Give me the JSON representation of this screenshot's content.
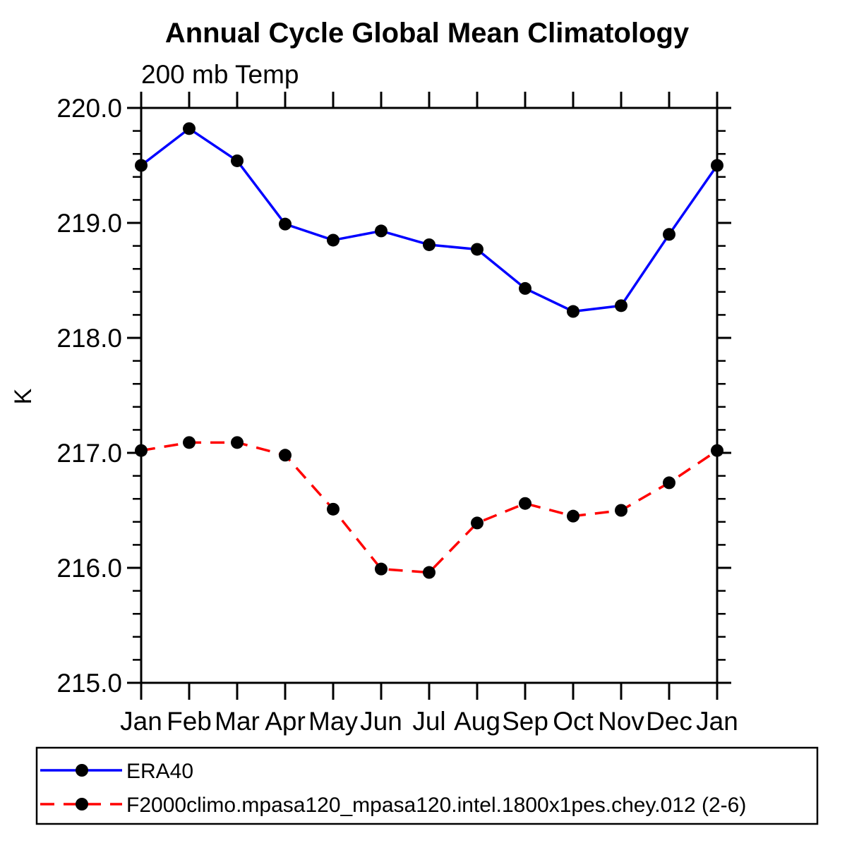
{
  "title": "Annual Cycle Global Mean Climatology",
  "subtitle": "200 mb Temp",
  "ylabel": "K",
  "legend": {
    "items": [
      {
        "label": "ERA40",
        "color": "#0000ff",
        "style": "solid"
      },
      {
        "label": "F2000climo.mpasa120_mpasa120.intel.1800x1pes.chey.012 (2-6)",
        "color": "#ff0000",
        "style": "dashed"
      }
    ]
  },
  "chart_data": {
    "type": "line",
    "title": "Annual Cycle Global Mean Climatology",
    "subtitle": "200 mb Temp",
    "xlabel": "",
    "ylabel": "K",
    "categories": [
      "Jan",
      "Feb",
      "Mar",
      "Apr",
      "May",
      "Jun",
      "Jul",
      "Aug",
      "Sep",
      "Oct",
      "Nov",
      "Dec",
      "Jan"
    ],
    "series": [
      {
        "name": "ERA40",
        "color": "#0000ff",
        "style": "solid",
        "marker": "circle",
        "values": [
          219.5,
          219.82,
          219.54,
          218.99,
          218.85,
          218.93,
          218.81,
          218.77,
          218.43,
          218.23,
          218.28,
          218.9,
          219.5
        ]
      },
      {
        "name": "F2000climo.mpasa120_mpasa120.intel.1800x1pes.chey.012 (2-6)",
        "color": "#ff0000",
        "style": "dashed",
        "marker": "circle",
        "values": [
          217.02,
          217.09,
          217.09,
          216.98,
          216.51,
          215.99,
          215.96,
          216.39,
          216.56,
          216.45,
          216.5,
          216.74,
          217.02
        ]
      }
    ],
    "ylim": [
      215.0,
      220.0
    ],
    "ytick_labels": [
      "215.0",
      "216.0",
      "217.0",
      "218.0",
      "219.0",
      "220.0"
    ],
    "ytick_values": [
      215,
      216,
      217,
      218,
      219,
      220
    ],
    "y_minor_step": 0.2,
    "marker_color": "#000000",
    "grid": "off",
    "legend_position": "bottom"
  }
}
